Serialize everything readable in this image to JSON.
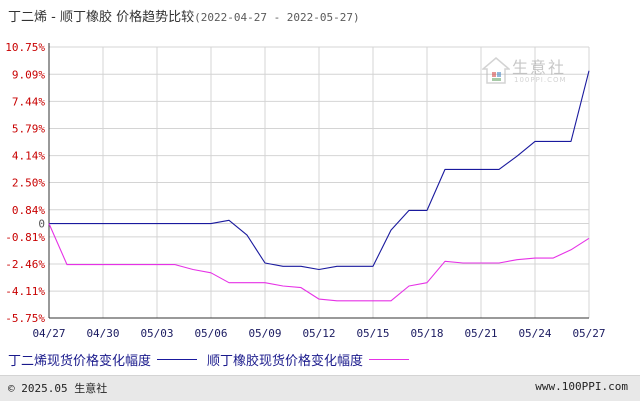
{
  "title": {
    "main": "丁二烯 - 顺丁橡胶 价格趋势比较",
    "range": "(2022-04-27 - 2022-05-27)"
  },
  "watermark": {
    "name": "生意社",
    "url": "100PPI.COM"
  },
  "footer": {
    "copyright": "© 2025.05 生意社",
    "url": "www.100PPI.com"
  },
  "colors": {
    "series1": "#1a1a9e",
    "series2": "#e632e6",
    "axis": "#c80000",
    "grid": "#d4d4d4",
    "ytick": "#c80000",
    "xtick": "#1a1a60"
  },
  "chart_data": {
    "type": "line",
    "ylim": [
      -5.75,
      10.75
    ],
    "yticks": [
      "10.75%",
      "9.09%",
      "7.44%",
      "5.79%",
      "4.14%",
      "2.50%",
      "0.84%",
      "0",
      "-0.81%",
      "-2.46%",
      "-4.11%",
      "-5.75%"
    ],
    "ytick_values": [
      10.75,
      9.09,
      7.44,
      5.79,
      4.14,
      2.5,
      0.84,
      0,
      -0.81,
      -2.46,
      -4.11,
      -5.75
    ],
    "xlim": [
      0,
      30
    ],
    "xticks": [
      "04/27",
      "04/30",
      "05/03",
      "05/06",
      "05/09",
      "05/12",
      "05/15",
      "05/18",
      "05/21",
      "05/24",
      "05/27"
    ],
    "xtick_values": [
      0,
      3,
      6,
      9,
      12,
      15,
      18,
      21,
      24,
      27,
      30
    ],
    "series": [
      {
        "name": "丁二烯现货价格变化幅度",
        "x": [
          0,
          9,
          10,
          11,
          12,
          13,
          14,
          15,
          16,
          17,
          18,
          19,
          20,
          21,
          22,
          23,
          24,
          25,
          26,
          27,
          28,
          29,
          30
        ],
        "y": [
          0,
          0,
          0.2,
          -0.7,
          -2.4,
          -2.6,
          -2.6,
          -2.8,
          -2.6,
          -2.6,
          -2.6,
          -0.4,
          0.8,
          0.8,
          3.3,
          3.3,
          3.3,
          3.3,
          4.1,
          5.0,
          5.0,
          5.0,
          9.3
        ]
      },
      {
        "name": "顺丁橡胶现货价格变化幅度",
        "x": [
          0,
          1,
          2,
          3,
          4,
          5,
          6,
          7,
          8,
          9,
          10,
          11,
          12,
          13,
          14,
          15,
          16,
          17,
          18,
          19,
          20,
          21,
          22,
          23,
          24,
          25,
          26,
          27,
          28,
          29,
          30
        ],
        "y": [
          0,
          -2.5,
          -2.5,
          -2.5,
          -2.5,
          -2.5,
          -2.5,
          -2.5,
          -2.8,
          -3.0,
          -3.6,
          -3.6,
          -3.6,
          -3.8,
          -3.9,
          -4.6,
          -4.7,
          -4.7,
          -4.7,
          -4.7,
          -3.8,
          -3.6,
          -2.3,
          -2.4,
          -2.4,
          -2.4,
          -2.2,
          -2.1,
          -2.1,
          -1.6,
          -0.9
        ]
      }
    ]
  }
}
